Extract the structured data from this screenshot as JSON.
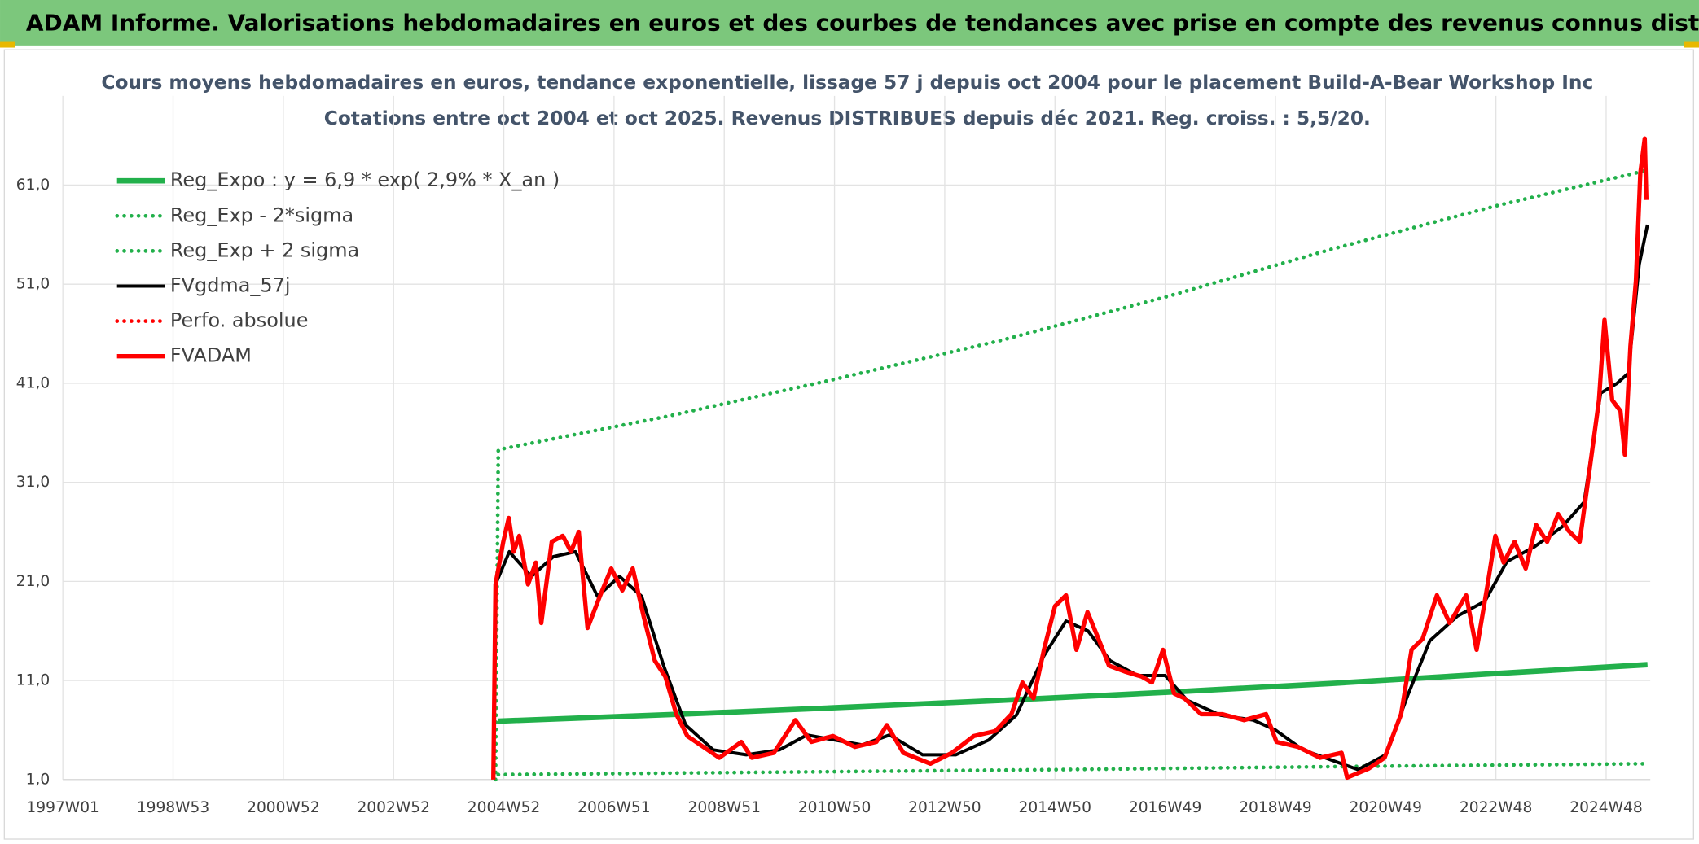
{
  "header": {
    "title": "ADAM Informe. Valorisations hebdomadaires en euros et des courbes de tendances avec prise en compte des revenus connus distribués"
  },
  "chart_data": {
    "type": "line",
    "title": "Cours moyens hebdomadaires en euros, tendance exponentielle, lissage 57 j depuis oct 2004 pour le placement Build-A-Bear Workshop Inc",
    "subtitle": "Cotations entre oct 2004 et oct 2025. Revenus DISTRIBUES depuis déc 2021. Reg. croiss. : 5,5/20.",
    "xlim": [
      1997,
      2025.8
    ],
    "xticks": [
      {
        "value": 1997,
        "label": "1997W01"
      },
      {
        "value": 1999,
        "label": "1998W53"
      },
      {
        "value": 2001,
        "label": "2000W52"
      },
      {
        "value": 2003,
        "label": "2002W52"
      },
      {
        "value": 2005,
        "label": "2004W52"
      },
      {
        "value": 2007,
        "label": "2006W51"
      },
      {
        "value": 2009,
        "label": "2008W51"
      },
      {
        "value": 2011,
        "label": "2010W50"
      },
      {
        "value": 2013,
        "label": "2012W50"
      },
      {
        "value": 2015,
        "label": "2014W50"
      },
      {
        "value": 2017,
        "label": "2016W49"
      },
      {
        "value": 2019,
        "label": "2018W49"
      },
      {
        "value": 2021,
        "label": "2020W49"
      },
      {
        "value": 2023,
        "label": "2022W48"
      },
      {
        "value": 2025,
        "label": "2024W48"
      }
    ],
    "ylim": [
      1,
      70
    ],
    "yticks": [
      {
        "value": 1,
        "label": "1,0"
      },
      {
        "value": 11,
        "label": "11,0"
      },
      {
        "value": 21,
        "label": "21,0"
      },
      {
        "value": 31,
        "label": "31,0"
      },
      {
        "value": 41,
        "label": "41,0"
      },
      {
        "value": 51,
        "label": "51,0"
      },
      {
        "value": 61,
        "label": "61,0"
      }
    ],
    "grid": true,
    "legend": "top-left",
    "series": [
      {
        "name": "Reg_Expo : y = 6,9 * exp( 2,9% *  X_an )",
        "color": "#22b04b",
        "style": "solid",
        "width": 5,
        "x": [
          2004.9,
          2008,
          2011,
          2014,
          2017,
          2020,
          2023,
          2025.75
        ],
        "values": [
          6.9,
          7.55,
          8.25,
          8.99,
          9.8,
          10.7,
          11.7,
          12.6
        ]
      },
      {
        "name": "Reg_Exp - 2*sigma",
        "color": "#22b04b",
        "style": "dotted",
        "width": 3.5,
        "x": [
          2004.9,
          2010,
          2015,
          2020,
          2025.75
        ],
        "values": [
          1.5,
          1.75,
          2.0,
          2.3,
          2.6
        ]
      },
      {
        "name": "Reg_Exp + 2 sigma",
        "color": "#22b04b",
        "style": "dotted",
        "width": 3.5,
        "x": [
          2004.85,
          2004.9,
          2008,
          2011,
          2014,
          2017,
          2020,
          2023,
          2025.75
        ],
        "values": [
          1.0,
          34.3,
          37.7,
          41.4,
          45.3,
          49.7,
          54.5,
          58.9,
          62.5
        ]
      },
      {
        "name": "FVgdma_57j",
        "color": "#000000",
        "style": "solid",
        "width": 3,
        "x": [
          2004.85,
          2005.1,
          2005.5,
          2005.9,
          2006.3,
          2006.7,
          2007.1,
          2007.5,
          2007.9,
          2008.3,
          2008.8,
          2009.4,
          2010.0,
          2010.5,
          2011.0,
          2011.5,
          2012.0,
          2012.6,
          2013.2,
          2013.8,
          2014.3,
          2014.8,
          2015.2,
          2015.6,
          2016.0,
          2016.5,
          2017.0,
          2017.4,
          2018.0,
          2018.6,
          2019.0,
          2019.5,
          2020.0,
          2020.5,
          2021.0,
          2021.4,
          2021.8,
          2022.3,
          2022.8,
          2023.2,
          2023.7,
          2024.2,
          2024.6,
          2024.9,
          2025.2,
          2025.4,
          2025.6,
          2025.75
        ],
        "values": [
          20.7,
          24.0,
          21.5,
          23.5,
          24.0,
          19.5,
          21.5,
          19.5,
          12.5,
          6.5,
          4.0,
          3.5,
          4.0,
          5.5,
          5.0,
          4.5,
          5.5,
          3.5,
          3.5,
          5.0,
          7.5,
          13.5,
          17.0,
          16.0,
          13.0,
          11.5,
          11.5,
          9.0,
          7.5,
          7.0,
          6.0,
          4.0,
          3.0,
          2.0,
          3.5,
          9.5,
          15.0,
          17.5,
          19.0,
          23.0,
          24.5,
          26.5,
          29.0,
          40.0,
          41.0,
          42.0,
          53.0,
          57.0
        ]
      },
      {
        "name": "Perfo. absolue",
        "color": "#ff0000",
        "style": "dotted",
        "width": 3.5,
        "x": [],
        "values": []
      },
      {
        "name": "FVADAM",
        "color": "#ff0000",
        "style": "solid",
        "width": 4,
        "x": [
          2004.81,
          2004.85,
          2004.99,
          2005.09,
          2005.18,
          2005.28,
          2005.44,
          2005.58,
          2005.68,
          2005.87,
          2006.07,
          2006.22,
          2006.36,
          2006.52,
          2006.75,
          2006.95,
          2007.15,
          2007.34,
          2007.54,
          2007.74,
          2007.93,
          2008.13,
          2008.33,
          2008.62,
          2008.91,
          2009.31,
          2009.5,
          2009.9,
          2010.29,
          2010.58,
          2010.97,
          2011.37,
          2011.76,
          2011.95,
          2012.25,
          2012.74,
          2013.13,
          2013.53,
          2013.92,
          2014.21,
          2014.41,
          2014.61,
          2014.8,
          2015.0,
          2015.2,
          2015.39,
          2015.59,
          2015.79,
          2015.98,
          2016.27,
          2016.57,
          2016.76,
          2016.96,
          2017.16,
          2017.35,
          2017.65,
          2018.04,
          2018.43,
          2018.83,
          2019.02,
          2019.41,
          2019.81,
          2020.2,
          2020.3,
          2020.69,
          2020.98,
          2021.28,
          2021.47,
          2021.67,
          2021.93,
          2022.16,
          2022.46,
          2022.65,
          2022.85,
          2022.99,
          2023.14,
          2023.34,
          2023.54,
          2023.73,
          2023.93,
          2024.13,
          2024.32,
          2024.52,
          2024.71,
          2024.87,
          2024.97,
          2025.11,
          2025.26,
          2025.34,
          2025.44,
          2025.54,
          2025.62,
          2025.7,
          2025.73
        ],
        "values": [
          1.0,
          20.7,
          25.0,
          27.4,
          24.0,
          25.6,
          20.7,
          22.9,
          16.8,
          25.0,
          25.6,
          24.0,
          26.0,
          16.3,
          19.6,
          22.3,
          20.1,
          22.3,
          17.4,
          13.0,
          11.4,
          7.6,
          5.4,
          4.3,
          3.2,
          4.8,
          3.2,
          3.7,
          7.0,
          4.8,
          5.4,
          4.3,
          4.8,
          6.5,
          3.7,
          2.6,
          3.7,
          5.4,
          5.9,
          7.6,
          10.8,
          9.2,
          14.1,
          18.5,
          19.6,
          14.1,
          17.9,
          15.2,
          12.5,
          11.9,
          11.4,
          10.8,
          14.1,
          9.7,
          9.2,
          7.6,
          7.6,
          7.0,
          7.6,
          4.8,
          4.3,
          3.2,
          3.7,
          1.2,
          2.1,
          3.2,
          7.6,
          14.1,
          15.2,
          19.6,
          16.8,
          19.6,
          14.1,
          20.7,
          25.6,
          22.9,
          25.0,
          22.3,
          26.7,
          25.0,
          27.8,
          26.1,
          25.0,
          32.7,
          39.3,
          47.4,
          39.3,
          38.2,
          33.8,
          44.7,
          51.3,
          62.2,
          65.7,
          59.5
        ]
      }
    ]
  }
}
